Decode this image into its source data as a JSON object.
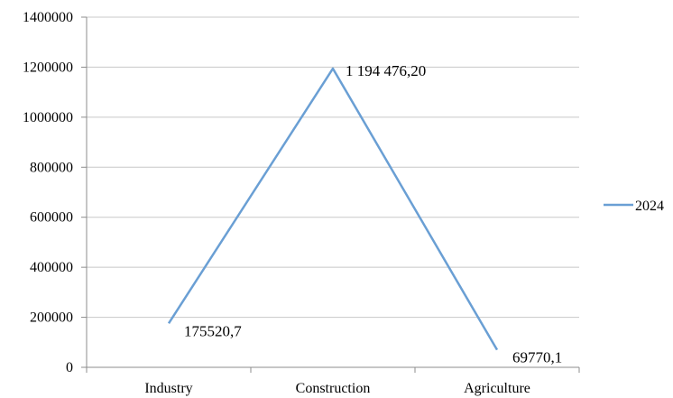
{
  "chart_data": {
    "type": "line",
    "categories": [
      "Industry",
      "Construction",
      "Agriculture"
    ],
    "series": [
      {
        "name": "2024",
        "values": [
          175520.7,
          1194476.2,
          69770.1
        ],
        "labels": [
          "175520,7",
          "1 194 476,20",
          "69770,1"
        ],
        "color": "#6A9FD4"
      }
    ],
    "ylim": [
      0,
      1400000
    ],
    "yticks": [
      0,
      200000,
      400000,
      600000,
      800000,
      1000000,
      1200000,
      1400000
    ],
    "ytick_labels": [
      "0",
      "200000",
      "400000",
      "600000",
      "800000",
      "1000000",
      "1200000",
      "1400000"
    ],
    "grid": true,
    "legend_position": "right",
    "gridline_color": "#c8c8c8",
    "axis_color": "#8c8c8c"
  }
}
